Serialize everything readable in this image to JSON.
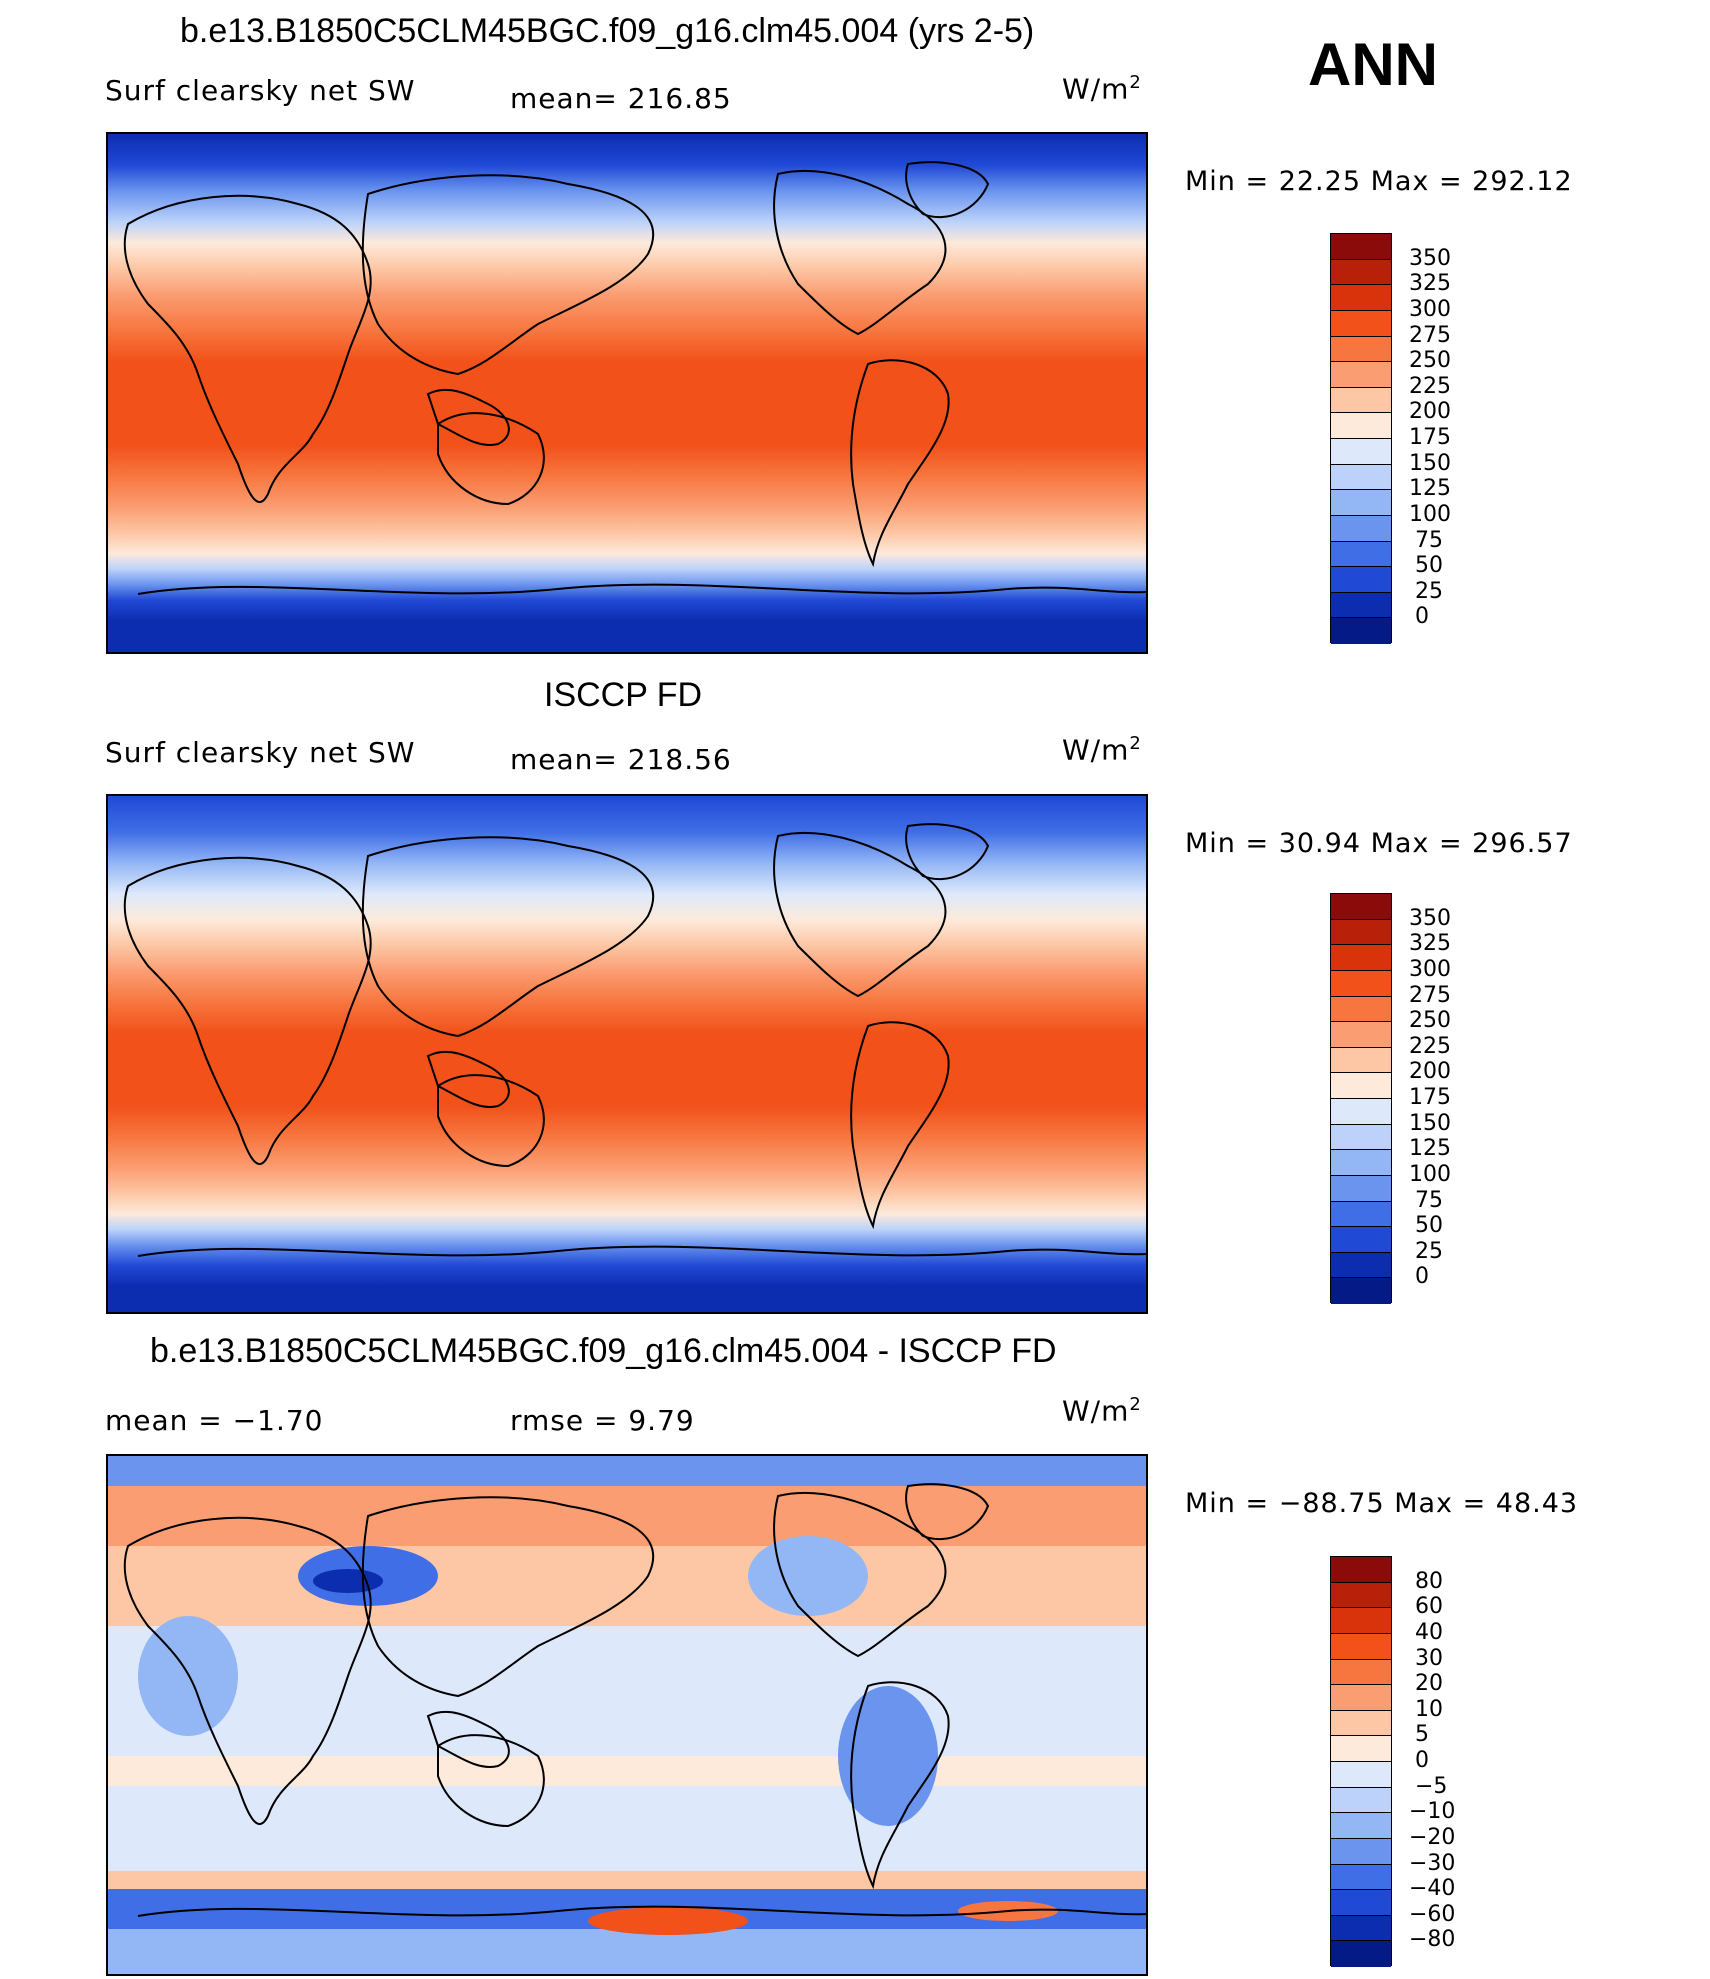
{
  "header": {
    "ann_label": "ANN"
  },
  "panels": [
    {
      "id": "model",
      "title": "b.e13.B1850C5CLM45BGC.f09_g16.clm45.004 (yrs 2-5)",
      "left_label": "Surf clearsky net SW",
      "center_label": "mean=  216.85",
      "units_base": "W/m",
      "units_exp": "2",
      "minmax": "Min =   22.25 Max = 292.12",
      "colorbar": {
        "labels": [
          "350",
          "325",
          "300",
          "275",
          "250",
          "225",
          "200",
          "175",
          "150",
          "125",
          "100",
          "75",
          "50",
          "25",
          "0"
        ],
        "colors": [
          "#8b0a0a",
          "#b8200a",
          "#d9330c",
          "#f2511a",
          "#f7763f",
          "#fb9d72",
          "#fdc6a4",
          "#fdeadb",
          "#dde9fb",
          "#bcd2fa",
          "#93b6f5",
          "#6a94ee",
          "#3f6ee6",
          "#2049d6",
          "#0d2db0",
          "#031a87"
        ]
      }
    },
    {
      "id": "obs",
      "title": "ISCCP FD",
      "left_label": "Surf clearsky net SW",
      "center_label": "mean=  218.56",
      "units_base": "W/m",
      "units_exp": "2",
      "minmax": "Min =   30.94 Max = 296.57",
      "colorbar": {
        "labels": [
          "350",
          "325",
          "300",
          "275",
          "250",
          "225",
          "200",
          "175",
          "150",
          "125",
          "100",
          "75",
          "50",
          "25",
          "0"
        ],
        "colors": [
          "#8b0a0a",
          "#b8200a",
          "#d9330c",
          "#f2511a",
          "#f7763f",
          "#fb9d72",
          "#fdc6a4",
          "#fdeadb",
          "#dde9fb",
          "#bcd2fa",
          "#93b6f5",
          "#6a94ee",
          "#3f6ee6",
          "#2049d6",
          "#0d2db0",
          "#031a87"
        ]
      }
    },
    {
      "id": "diff",
      "title": "b.e13.B1850C5CLM45BGC.f09_g16.clm45.004 - ISCCP FD",
      "left_label": "mean =   −1.70",
      "center_label": "rmse =    9.79",
      "units_base": "W/m",
      "units_exp": "2",
      "minmax": "Min = −88.75 Max =   48.43",
      "colorbar": {
        "labels": [
          "80",
          "60",
          "40",
          "30",
          "20",
          "10",
          "5",
          "0",
          "−5",
          "−10",
          "−20",
          "−30",
          "−40",
          "−60",
          "−80"
        ],
        "colors": [
          "#8b0a0a",
          "#b8200a",
          "#d9330c",
          "#f2511a",
          "#f7763f",
          "#fb9d72",
          "#fdc6a4",
          "#fdeadb",
          "#dde9fb",
          "#bcd2fa",
          "#93b6f5",
          "#6a94ee",
          "#3f6ee6",
          "#2049d6",
          "#0d2db0",
          "#031a87"
        ]
      }
    }
  ]
}
